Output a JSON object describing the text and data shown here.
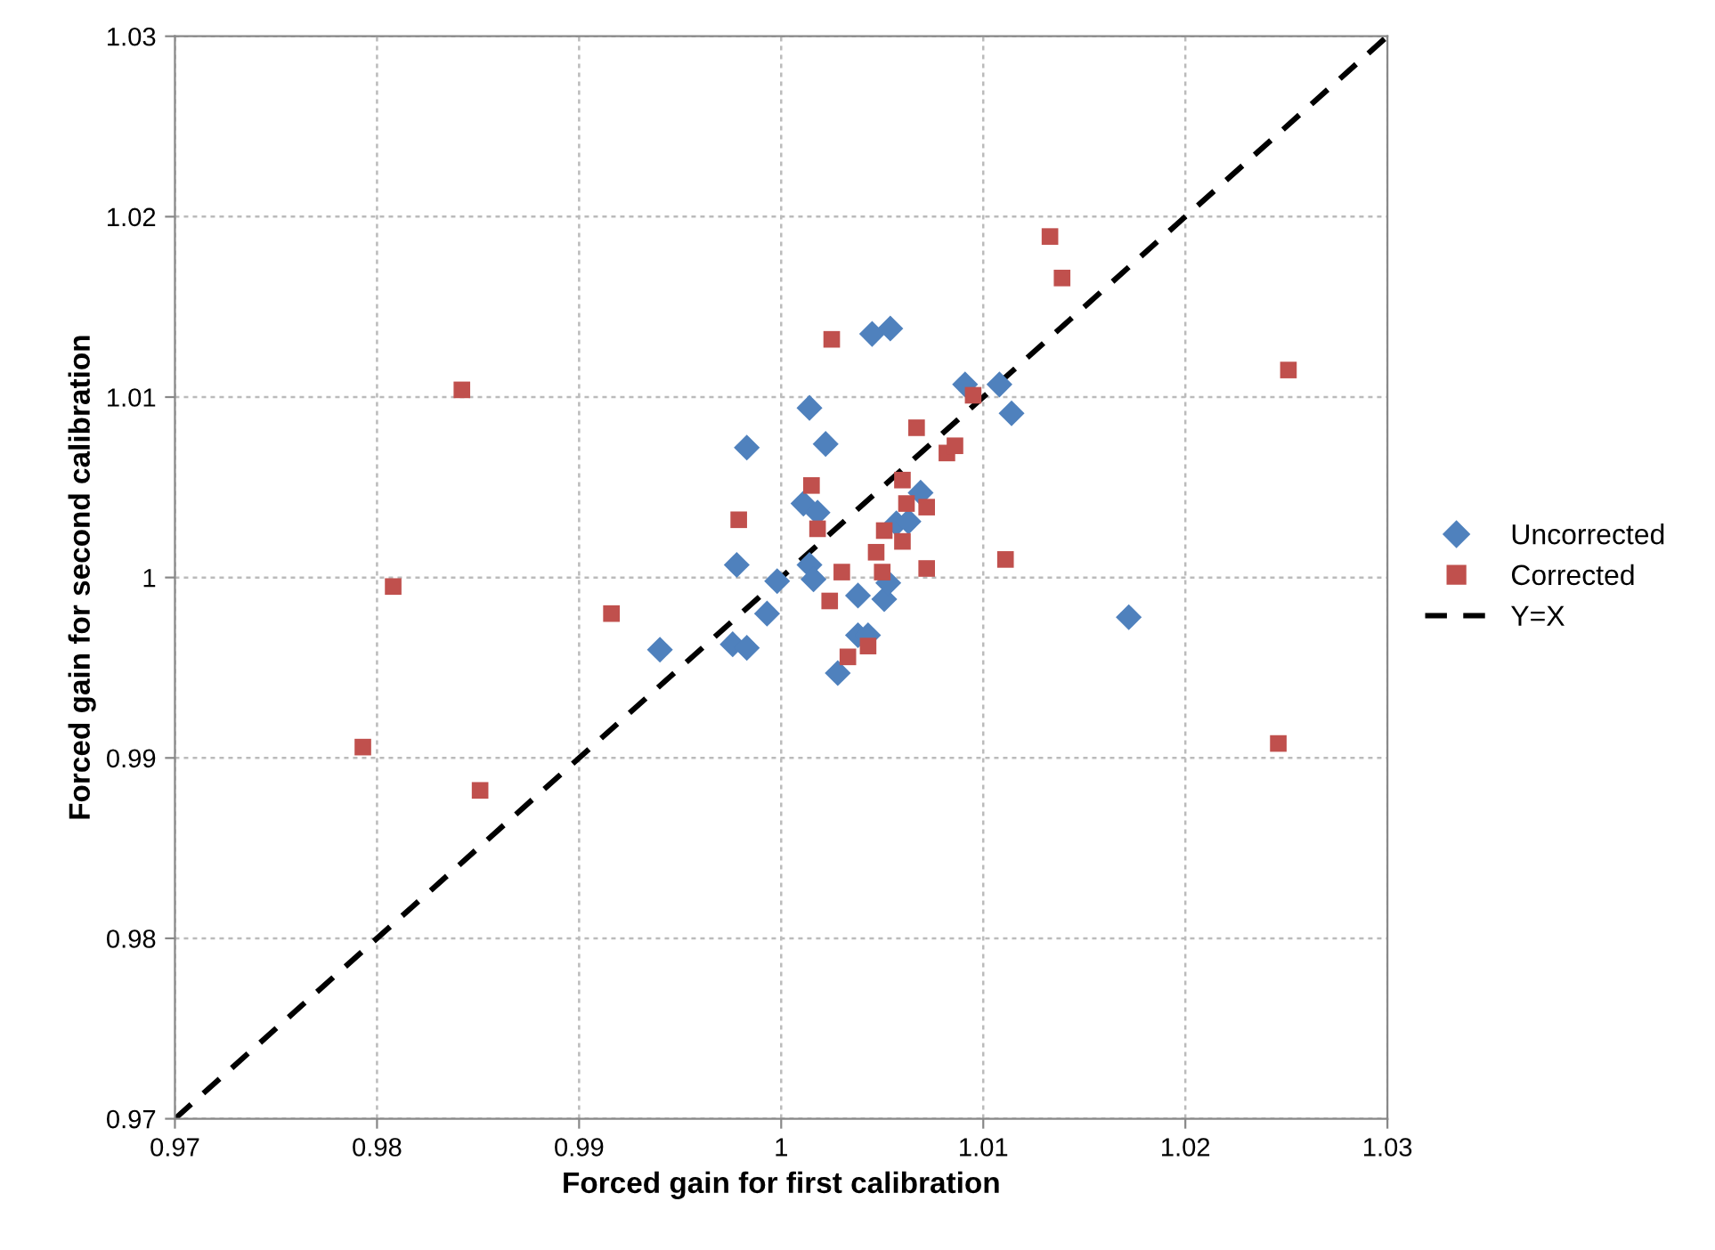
{
  "chart_data": {
    "type": "scatter",
    "xlabel": "Forced gain for first calibration",
    "ylabel": "Forced gain for second calibration",
    "xlim": [
      0.97,
      1.03
    ],
    "ylim": [
      0.97,
      1.03
    ],
    "xticks": [
      0.97,
      0.98,
      0.99,
      1,
      1.01,
      1.02,
      1.03
    ],
    "yticks": [
      0.97,
      0.98,
      0.99,
      1,
      1.01,
      1.02,
      1.03
    ],
    "grid": true,
    "legend": "right",
    "series": [
      {
        "name": "Uncorrected",
        "color": "#4f81bd",
        "marker": "diamond",
        "x": [
          0.994,
          0.9976,
          0.9983,
          0.9978,
          0.9983,
          0.9993,
          0.9998,
          1.0011,
          1.0014,
          1.0014,
          1.0016,
          1.0018,
          1.0022,
          1.0028,
          1.0038,
          1.0038,
          1.0043,
          1.0045,
          1.0054,
          1.0051,
          1.0053,
          1.0057,
          1.0063,
          1.0069,
          1.0091,
          1.0108,
          1.0114,
          1.0172
        ],
        "values": [
          0.996,
          0.9963,
          0.9961,
          1.0007,
          1.0072,
          0.998,
          0.9998,
          1.0041,
          1.0094,
          1.0007,
          0.9999,
          1.0036,
          1.0074,
          0.9947,
          0.999,
          0.9968,
          0.9968,
          1.0135,
          1.0138,
          0.9988,
          0.9997,
          1.003,
          1.0031,
          1.0047,
          1.0107,
          1.0107,
          1.0091,
          0.9978
        ]
      },
      {
        "name": "Corrected",
        "color": "#c0504d",
        "marker": "square",
        "x": [
          1.0025,
          0.9916,
          0.9979,
          1.0015,
          1.0018,
          1.0024,
          1.003,
          1.0033,
          1.0043,
          1.0047,
          1.005,
          1.0051,
          1.006,
          1.0062,
          1.006,
          1.0067,
          1.0072,
          1.0072,
          1.0082,
          1.0086,
          1.0095,
          1.0111,
          0.9842,
          0.9808,
          0.9793,
          0.9851,
          1.0133,
          1.0139,
          1.0251,
          1.0246
        ],
        "values": [
          1.0132,
          0.998,
          1.0032,
          1.0051,
          1.0027,
          0.9987,
          1.0003,
          0.9956,
          0.9962,
          1.0014,
          1.0003,
          1.0026,
          1.002,
          1.0041,
          1.0054,
          1.0083,
          1.0039,
          1.0005,
          1.0069,
          1.0073,
          1.0101,
          1.001,
          1.0104,
          0.9995,
          0.9906,
          0.9882,
          1.0189,
          1.0166,
          1.0115,
          0.9908
        ]
      },
      {
        "name": "Y=X",
        "type": "line",
        "color": "#000000",
        "marker": "none",
        "line_style": "dashed",
        "x": [
          0.97,
          1.03
        ],
        "values": [
          0.97,
          1.03
        ]
      }
    ]
  }
}
